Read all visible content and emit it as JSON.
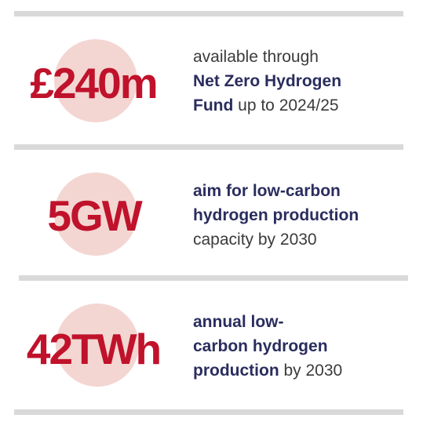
{
  "colors": {
    "stat_text": "#c0122b",
    "circle_fill": "#f3d6d2",
    "highlight_text": "#2a2d5e",
    "body_text": "#3b3b3b",
    "divider": "#d9d9d9"
  },
  "items": [
    {
      "value": "£240m",
      "lines": [
        {
          "parts": [
            {
              "text": "available through",
              "bold": false
            }
          ]
        },
        {
          "parts": [
            {
              "text": "Net Zero Hydrogen",
              "bold": true
            }
          ]
        },
        {
          "parts": [
            {
              "text": "Fund",
              "bold": true
            },
            {
              "text": " up to 2024/25",
              "bold": false
            }
          ]
        }
      ]
    },
    {
      "value": "5GW",
      "lines": [
        {
          "parts": [
            {
              "text": "aim for low-carbon",
              "bold": true
            }
          ]
        },
        {
          "parts": [
            {
              "text": "hydrogen production",
              "bold": true
            }
          ]
        },
        {
          "parts": [
            {
              "text": "capacity by 2030",
              "bold": false
            }
          ]
        }
      ]
    },
    {
      "value": "42TWh",
      "lines": [
        {
          "parts": [
            {
              "text": "annual low-",
              "bold": true
            }
          ]
        },
        {
          "parts": [
            {
              "text": "carbon hydrogen",
              "bold": true
            }
          ]
        },
        {
          "parts": [
            {
              "text": "production",
              "bold": true
            },
            {
              "text": " by 2030",
              "bold": false
            }
          ]
        }
      ]
    }
  ]
}
